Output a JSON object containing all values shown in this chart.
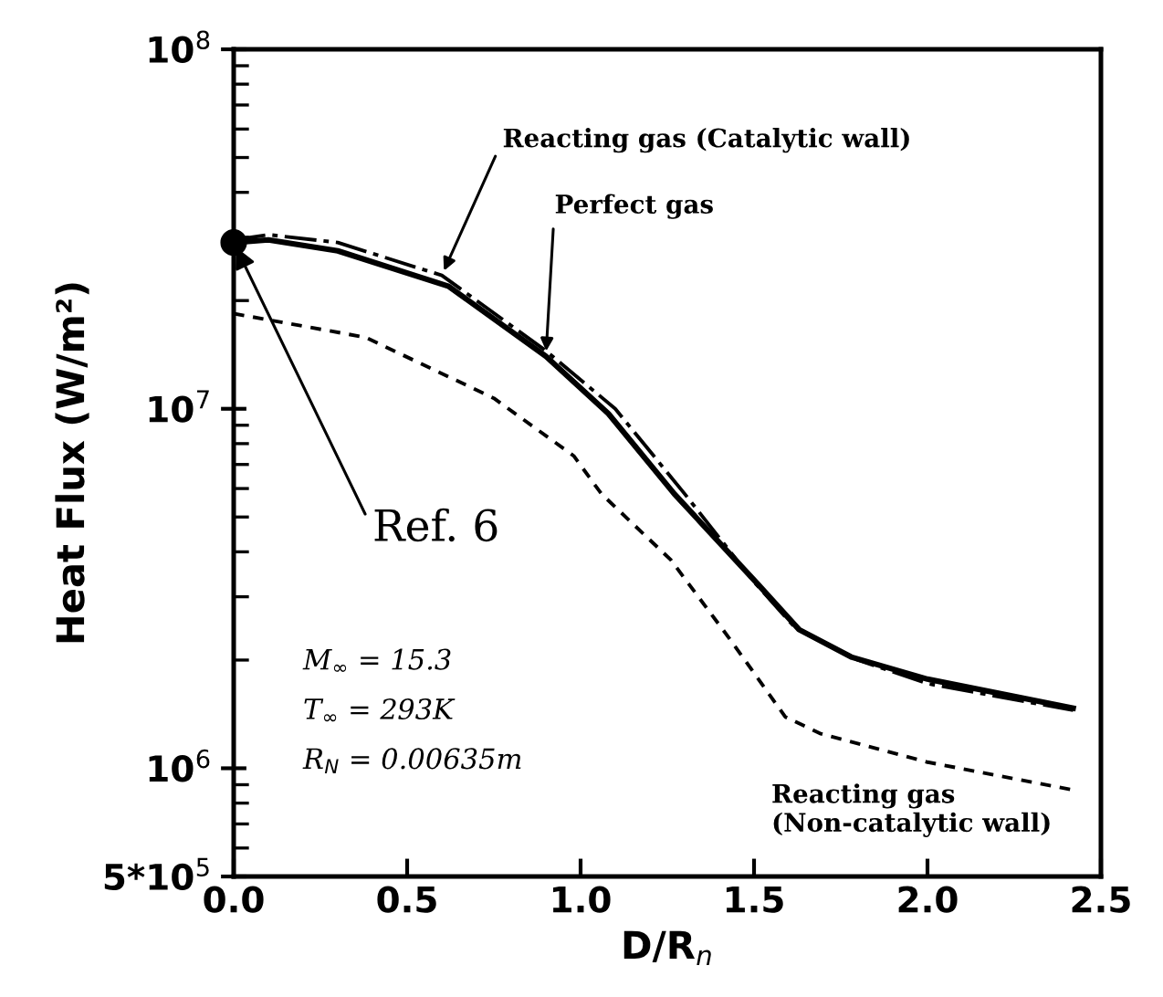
{
  "chart_data": {
    "type": "line",
    "xlabel": "D/R$_{n}$",
    "ylabel": "Heat Flux (W/m²)",
    "log": "y",
    "xlim": [
      0,
      2.5
    ],
    "xticks": [
      {
        "value": 0,
        "label": "0.0"
      },
      0.5,
      {
        "value": 1,
        "label": "1.0"
      },
      1.5,
      {
        "value": 2,
        "label": "2.0"
      },
      2.5
    ],
    "ylim": [
      500000,
      100000000
    ],
    "yticks": [
      {
        "value": 500000,
        "label": "5*10$^{5}$"
      },
      {
        "value": 1000000,
        "label": "10$^{6}$"
      },
      {
        "value": 10000000,
        "label": "10$^{7}$"
      },
      {
        "value": 100000000,
        "label": "10$^{8}$"
      }
    ],
    "grid": false,
    "legend": false,
    "series": [
      {
        "name": "Reacting gas (Catalytic wall)",
        "color": "#000000",
        "line_style": "dashdot",
        "x": [
          0,
          0.1,
          0.3,
          0.6,
          0.9,
          1.1,
          1.3,
          1.5,
          1.62,
          1.8,
          2.0,
          2.42
        ],
        "values": [
          29500000,
          30500000,
          29000000,
          23500000,
          14500000,
          10000000,
          5800000,
          3300000,
          2450000,
          2000000,
          1720000,
          1450000
        ]
      },
      {
        "name": "Perfect gas",
        "color": "#000000",
        "line_style": "solid",
        "x": [
          0,
          0.1,
          0.3,
          0.62,
          0.9,
          1.08,
          1.27,
          1.51,
          1.63,
          1.78,
          2.0,
          2.42
        ],
        "values": [
          29000000,
          29500000,
          27500000,
          21900000,
          14000000,
          9700000,
          5800000,
          3260000,
          2430000,
          2040000,
          1770000,
          1470000
        ]
      },
      {
        "name": "Reacting gas (Non-catalytic wall)",
        "color": "#000000",
        "line_style": "dashed",
        "x": [
          0,
          0.38,
          0.75,
          0.98,
          1.06,
          1.26,
          1.43,
          1.59,
          1.69,
          2.0,
          2.42
        ],
        "values": [
          18400000,
          15800000,
          10700000,
          7400000,
          5800000,
          3800000,
          2290000,
          1390000,
          1250000,
          1040000,
          870000
        ]
      },
      {
        "name": "Ref. 6",
        "type": "scatter",
        "marker": "circle",
        "color": "#000000",
        "x": [
          0
        ],
        "values": [
          29000000
        ]
      }
    ],
    "annotations": [
      "M$_{∞}$ = 15.3",
      "T$_{∞}$ = 293K",
      "R$_{N}$ = 0.00635m"
    ]
  }
}
